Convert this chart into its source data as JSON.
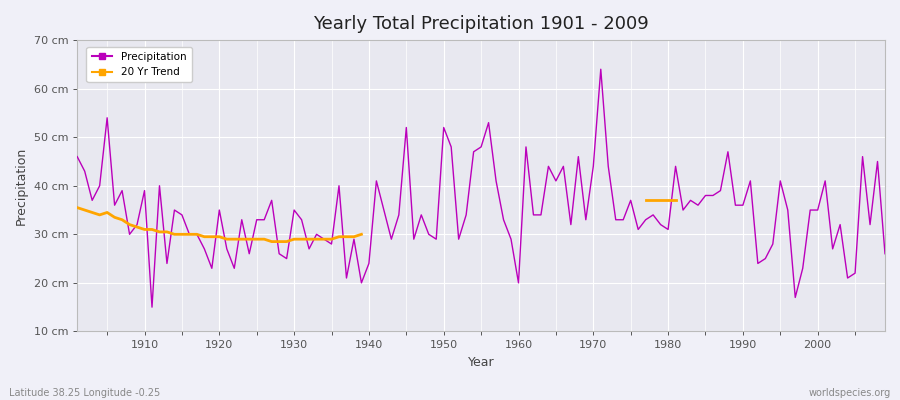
{
  "title": "Yearly Total Precipitation 1901 - 2009",
  "xlabel": "Year",
  "ylabel": "Precipitation",
  "subtitle": "Latitude 38.25 Longitude -0.25",
  "watermark": "worldspecies.org",
  "bg_color": "#f0f0f8",
  "plot_bg_color": "#e8e8f0",
  "line_color": "#bb00bb",
  "trend_color": "#ffa500",
  "ylim": [
    10,
    70
  ],
  "yticks": [
    10,
    20,
    30,
    40,
    50,
    60,
    70
  ],
  "xlim": [
    1901,
    2009
  ],
  "years": [
    1901,
    1902,
    1903,
    1904,
    1905,
    1906,
    1907,
    1908,
    1909,
    1910,
    1911,
    1912,
    1913,
    1914,
    1915,
    1916,
    1917,
    1918,
    1919,
    1920,
    1921,
    1922,
    1923,
    1924,
    1925,
    1926,
    1927,
    1928,
    1929,
    1930,
    1931,
    1932,
    1933,
    1934,
    1935,
    1936,
    1937,
    1938,
    1939,
    1940,
    1941,
    1942,
    1943,
    1944,
    1945,
    1946,
    1947,
    1948,
    1949,
    1950,
    1951,
    1952,
    1953,
    1954,
    1955,
    1956,
    1957,
    1958,
    1959,
    1960,
    1961,
    1962,
    1963,
    1964,
    1965,
    1966,
    1967,
    1968,
    1969,
    1970,
    1971,
    1972,
    1973,
    1974,
    1975,
    1976,
    1977,
    1978,
    1979,
    1980,
    1981,
    1982,
    1983,
    1984,
    1985,
    1986,
    1987,
    1988,
    1989,
    1990,
    1991,
    1992,
    1993,
    1994,
    1995,
    1996,
    1997,
    1998,
    1999,
    2000,
    2001,
    2002,
    2003,
    2004,
    2005,
    2006,
    2007,
    2008,
    2009
  ],
  "precip": [
    46,
    43,
    37,
    40,
    54,
    36,
    39,
    30,
    32,
    39,
    15,
    40,
    24,
    35,
    34,
    30,
    30,
    27,
    23,
    35,
    27,
    23,
    33,
    26,
    33,
    33,
    37,
    26,
    25,
    35,
    33,
    27,
    30,
    29,
    28,
    40,
    21,
    29,
    20,
    24,
    41,
    35,
    29,
    34,
    52,
    29,
    34,
    30,
    29,
    52,
    48,
    29,
    34,
    47,
    48,
    53,
    41,
    33,
    29,
    20,
    48,
    34,
    34,
    44,
    41,
    44,
    32,
    46,
    33,
    44,
    64,
    44,
    33,
    33,
    37,
    31,
    33,
    34,
    32,
    31,
    44,
    35,
    37,
    36,
    38,
    38,
    39,
    47,
    36,
    36,
    41,
    24,
    25,
    28,
    41,
    35,
    17,
    23,
    35,
    35,
    41,
    27,
    32,
    21,
    22,
    46,
    32,
    45,
    26
  ],
  "trend_seg1_years": [
    1901,
    1902,
    1903,
    1904,
    1905,
    1906,
    1907,
    1908,
    1909,
    1910,
    1911,
    1912,
    1913,
    1914,
    1915,
    1916,
    1917,
    1918,
    1919,
    1920,
    1921,
    1922,
    1923,
    1924,
    1925,
    1926,
    1927,
    1928,
    1929,
    1930,
    1931,
    1932,
    1933,
    1934,
    1935,
    1936,
    1937,
    1938,
    1939
  ],
  "trend_seg1_vals": [
    35.5,
    35.0,
    34.5,
    34.0,
    34.5,
    33.5,
    33.0,
    32.0,
    31.5,
    31.0,
    31.0,
    30.5,
    30.5,
    30.0,
    30.0,
    30.0,
    30.0,
    29.5,
    29.5,
    29.5,
    29.0,
    29.0,
    29.0,
    29.0,
    29.0,
    29.0,
    28.5,
    28.5,
    28.5,
    29.0,
    29.0,
    29.0,
    29.0,
    29.0,
    29.0,
    29.5,
    29.5,
    29.5,
    30.0
  ],
  "trend_seg2_years": [
    1977,
    1978,
    1979,
    1980,
    1981
  ],
  "trend_seg2_vals": [
    37.0,
    37.0,
    37.0,
    37.0,
    37.0
  ]
}
